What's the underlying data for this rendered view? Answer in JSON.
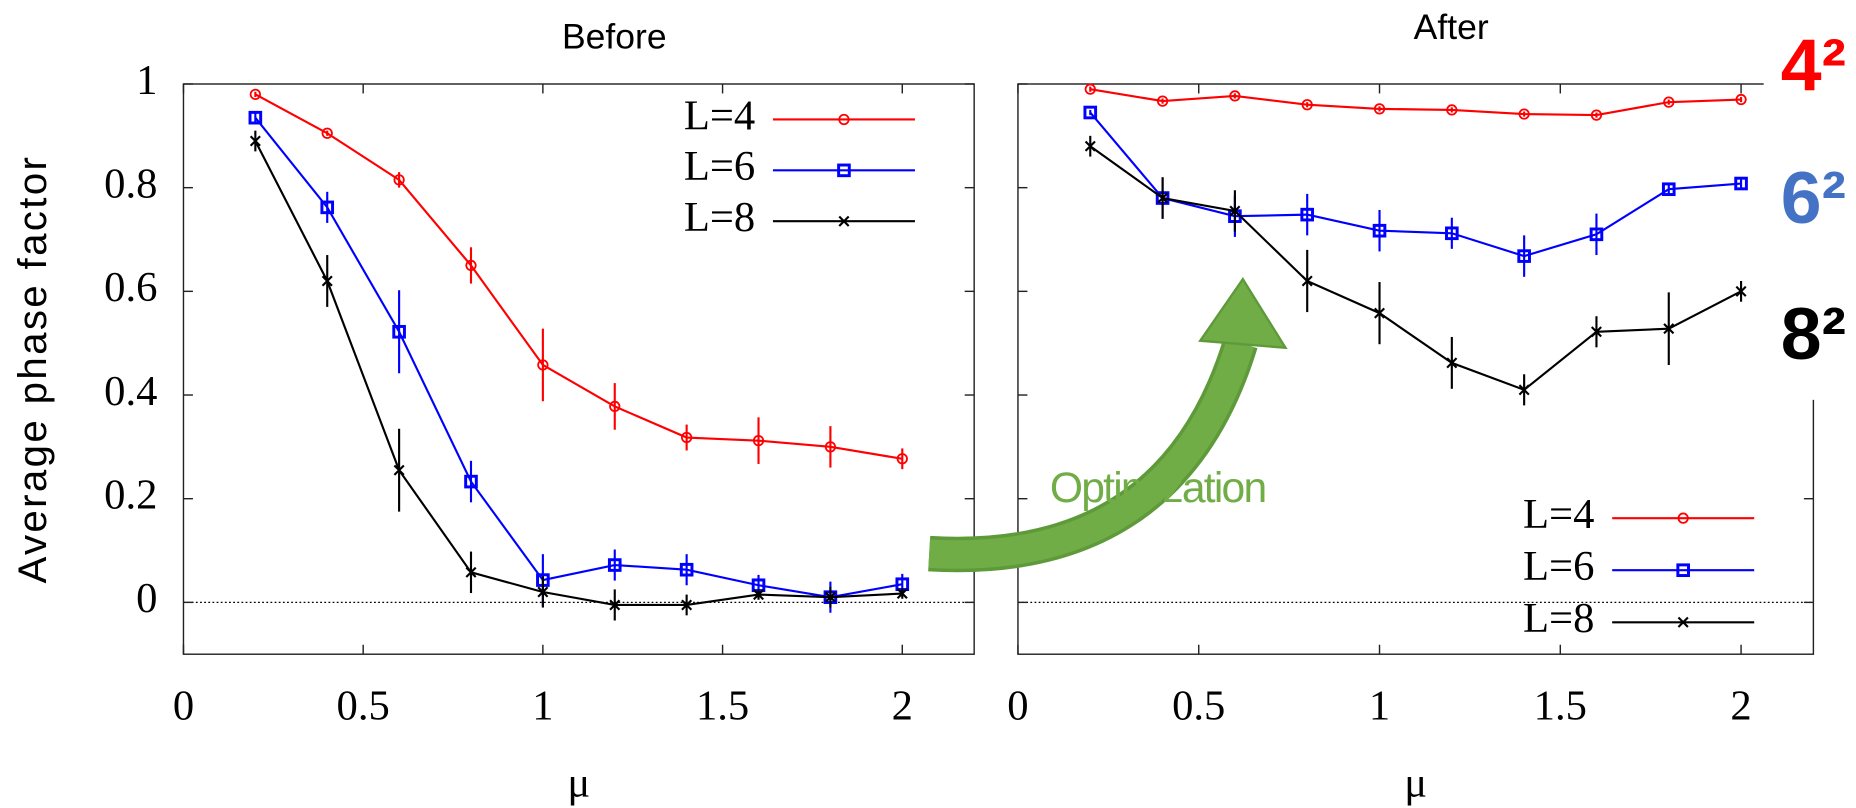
{
  "chart_data": [
    {
      "type": "line",
      "title": "Before",
      "xlabel": "μ",
      "ylabel": "Average phase factor",
      "xlim": [
        0,
        2.2
      ],
      "ylim": [
        -0.1,
        1
      ],
      "xticks": [
        0,
        0.5,
        1,
        1.5,
        2
      ],
      "yticks": [
        0,
        0.2,
        0.4,
        0.6,
        0.8,
        1
      ],
      "zero_line": true,
      "legend": "upper right",
      "x": [
        0.2,
        0.4,
        0.6,
        0.8,
        1.0,
        1.2,
        1.4,
        1.6,
        1.8,
        2.0
      ],
      "series": [
        {
          "name": "L=4",
          "color": "#ff0000",
          "marker": "circle",
          "values": [
            0.98,
            0.905,
            0.815,
            0.65,
            0.458,
            0.378,
            0.318,
            0.312,
            0.3,
            0.277
          ],
          "errors": [
            0.005,
            0.005,
            0.015,
            0.035,
            0.07,
            0.045,
            0.025,
            0.045,
            0.04,
            0.02
          ]
        },
        {
          "name": "L=6",
          "color": "#0000ff",
          "marker": "square",
          "values": [
            0.935,
            0.762,
            0.522,
            0.233,
            0.043,
            0.072,
            0.063,
            0.033,
            0.01,
            0.035
          ],
          "errors": [
            0.01,
            0.03,
            0.08,
            0.04,
            0.05,
            0.03,
            0.03,
            0.02,
            0.03,
            0.02
          ]
        },
        {
          "name": "L=8",
          "color": "#000000",
          "marker": "cross",
          "values": [
            0.89,
            0.62,
            0.255,
            0.058,
            0.02,
            -0.005,
            -0.005,
            0.015,
            0.01,
            0.017
          ],
          "errors": [
            0.02,
            0.05,
            0.08,
            0.04,
            0.03,
            0.03,
            0.02,
            0.01,
            0.02,
            0.01
          ]
        }
      ]
    },
    {
      "type": "line",
      "title": "After",
      "xlabel": "μ",
      "xlim": [
        0,
        2.2
      ],
      "ylim": [
        -0.1,
        1
      ],
      "xticks": [
        0,
        0.5,
        1,
        1.5,
        2
      ],
      "yticks": [
        0,
        0.2,
        0.4,
        0.6,
        0.8,
        1
      ],
      "ytick_labels": false,
      "zero_line": true,
      "legend": "lower right",
      "x": [
        0.2,
        0.4,
        0.6,
        0.8,
        1.0,
        1.2,
        1.4,
        1.6,
        1.8,
        2.0
      ],
      "series": [
        {
          "name": "L=4",
          "color": "#ff0000",
          "marker": "circle",
          "values": [
            0.99,
            0.967,
            0.977,
            0.96,
            0.952,
            0.95,
            0.942,
            0.94,
            0.965,
            0.97
          ],
          "errors": [
            0.005,
            0.005,
            0.005,
            0.005,
            0.005,
            0.005,
            0.005,
            0.005,
            0.005,
            0.005
          ]
        },
        {
          "name": "L=6",
          "color": "#0000ff",
          "marker": "square",
          "values": [
            0.945,
            0.78,
            0.745,
            0.748,
            0.717,
            0.712,
            0.668,
            0.71,
            0.797,
            0.808
          ],
          "errors": [
            0.005,
            0.04,
            0.04,
            0.04,
            0.04,
            0.03,
            0.04,
            0.04,
            0.01,
            0.01
          ]
        },
        {
          "name": "L=8",
          "color": "#000000",
          "marker": "cross",
          "values": [
            0.88,
            0.78,
            0.755,
            0.62,
            0.558,
            0.462,
            0.41,
            0.522,
            0.528,
            0.6
          ],
          "errors": [
            0.02,
            0.04,
            0.04,
            0.06,
            0.06,
            0.05,
            0.03,
            0.03,
            0.07,
            0.02
          ]
        }
      ],
      "annotations": [
        {
          "text": "Optimization",
          "color": "#70ad47"
        },
        {
          "text": "4²",
          "color": "#ff0000"
        },
        {
          "text": "6²",
          "color": "#4472c4"
        },
        {
          "text": "8²",
          "color": "#000000"
        }
      ]
    }
  ]
}
